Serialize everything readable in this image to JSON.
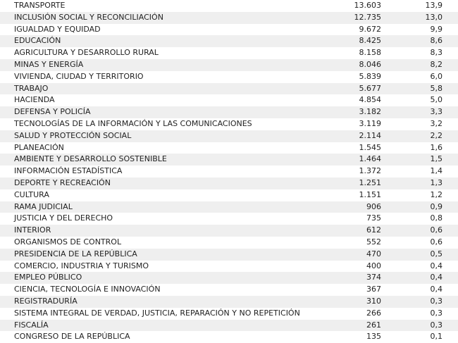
{
  "rows": [
    {
      "sector": "TRANSPORTE",
      "value": "13.603",
      "percent": "13,9"
    },
    {
      "sector": "INCLUSIÓN SOCIAL Y RECONCILIACIÓN",
      "value": "12.735",
      "percent": "13,0"
    },
    {
      "sector": "IGUALDAD Y EQUIDAD",
      "value": "9.672",
      "percent": "9,9"
    },
    {
      "sector": "EDUCACIÓN",
      "value": "8.425",
      "percent": "8,6"
    },
    {
      "sector": "AGRICULTURA Y DESARROLLO RURAL",
      "value": "8.158",
      "percent": "8,3"
    },
    {
      "sector": "MINAS Y ENERGÍA",
      "value": "8.046",
      "percent": "8,2"
    },
    {
      "sector": "VIVIENDA, CIUDAD Y TERRITORIO",
      "value": "5.839",
      "percent": "6,0"
    },
    {
      "sector": "TRABAJO",
      "value": "5.677",
      "percent": "5,8"
    },
    {
      "sector": "HACIENDA",
      "value": "4.854",
      "percent": "5,0"
    },
    {
      "sector": "DEFENSA Y POLICÍA",
      "value": "3.182",
      "percent": "3,3"
    },
    {
      "sector": "TECNOLOGÍAS DE LA INFORMACIÓN Y LAS COMUNICACIONES",
      "value": "3.119",
      "percent": "3,2"
    },
    {
      "sector": "SALUD Y PROTECCIÓN SOCIAL",
      "value": "2.114",
      "percent": "2,2"
    },
    {
      "sector": "PLANEACIÓN",
      "value": "1.545",
      "percent": "1,6"
    },
    {
      "sector": "AMBIENTE Y DESARROLLO SOSTENIBLE",
      "value": "1.464",
      "percent": "1,5"
    },
    {
      "sector": "INFORMACIÓN ESTADÍSTICA",
      "value": "1.372",
      "percent": "1,4"
    },
    {
      "sector": "DEPORTE Y RECREACIÓN",
      "value": "1.251",
      "percent": "1,3"
    },
    {
      "sector": "CULTURA",
      "value": "1.151",
      "percent": "1,2"
    },
    {
      "sector": "RAMA JUDICIAL",
      "value": "906",
      "percent": "0,9"
    },
    {
      "sector": "JUSTICIA Y DEL DERECHO",
      "value": "735",
      "percent": "0,8"
    },
    {
      "sector": "INTERIOR",
      "value": "612",
      "percent": "0,6"
    },
    {
      "sector": "ORGANISMOS DE CONTROL",
      "value": "552",
      "percent": "0,6"
    },
    {
      "sector": "PRESIDENCIA DE LA REPÚBLICA",
      "value": "470",
      "percent": "0,5"
    },
    {
      "sector": "COMERCIO, INDUSTRIA Y TURISMO",
      "value": "400",
      "percent": "0,4"
    },
    {
      "sector": "EMPLEO PÚBLICO",
      "value": "374",
      "percent": "0,4"
    },
    {
      "sector": "CIENCIA, TECNOLOGÍA E INNOVACIÓN",
      "value": "367",
      "percent": "0,4"
    },
    {
      "sector": "REGISTRADURÍA",
      "value": "310",
      "percent": "0,3"
    },
    {
      "sector": "SISTEMA INTEGRAL DE VERDAD, JUSTICIA, REPARACIÓN Y NO REPETICIÓN",
      "value": "266",
      "percent": "0,3"
    },
    {
      "sector": "FISCALÍA",
      "value": "261",
      "percent": "0,3"
    },
    {
      "sector": "CONGRESO DE LA REPÚBLICA",
      "value": "135",
      "percent": "0,1"
    }
  ]
}
